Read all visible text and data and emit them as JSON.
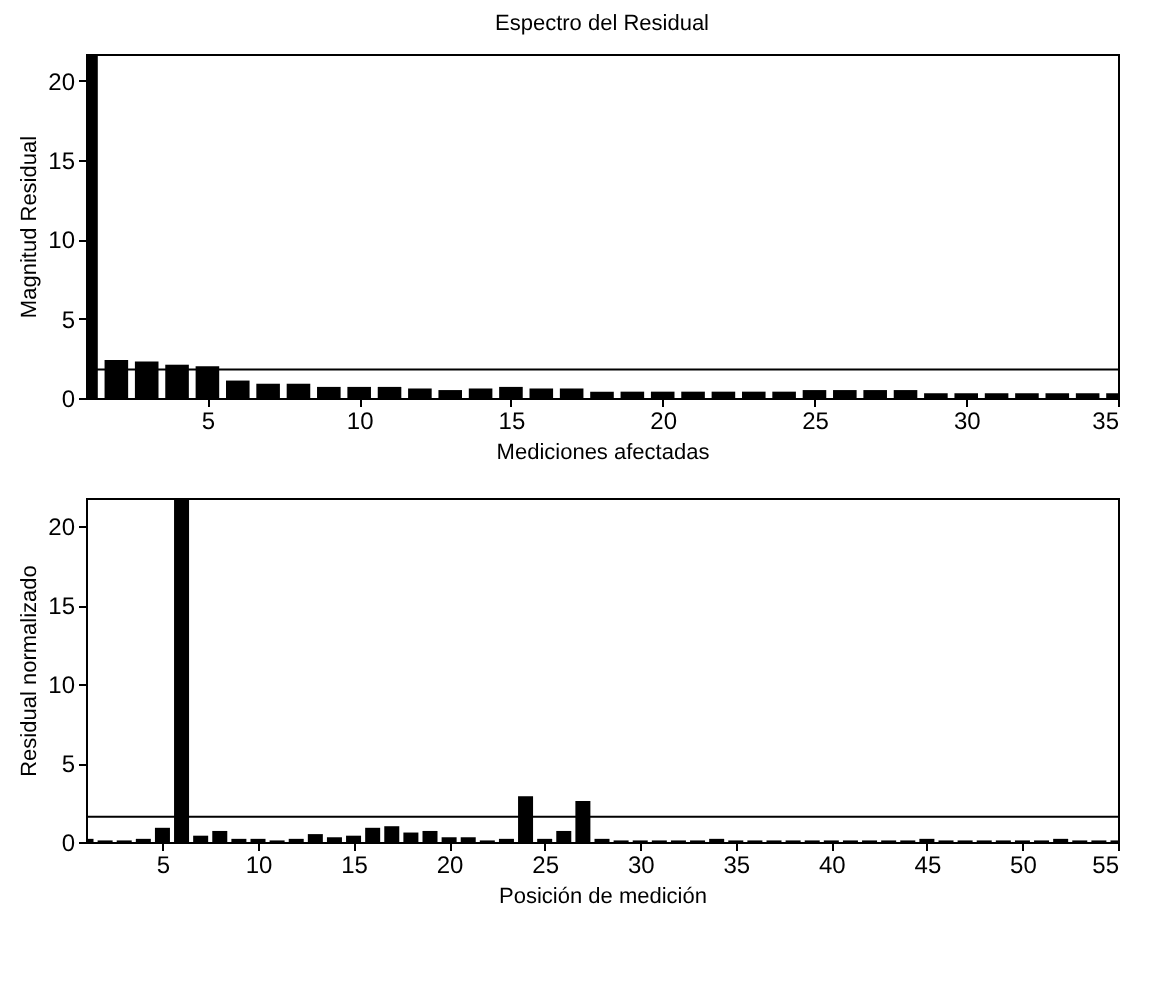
{
  "chart_data": [
    {
      "type": "bar",
      "title": "Espectro del Residual",
      "xlabel": "Mediciones afectadas",
      "ylabel": "Magnitud Residual",
      "color": "#000000",
      "x": [
        1,
        2,
        3,
        4,
        5,
        6,
        7,
        8,
        9,
        10,
        11,
        12,
        13,
        14,
        15,
        16,
        17,
        18,
        19,
        20,
        21,
        22,
        23,
        24,
        25,
        26,
        27,
        28,
        29,
        30,
        31,
        32,
        33,
        34,
        35
      ],
      "values": [
        21.7,
        2.4,
        2.3,
        2.1,
        2.0,
        1.1,
        0.9,
        0.9,
        0.7,
        0.7,
        0.7,
        0.6,
        0.5,
        0.6,
        0.7,
        0.6,
        0.6,
        0.4,
        0.4,
        0.4,
        0.4,
        0.4,
        0.4,
        0.4,
        0.5,
        0.5,
        0.5,
        0.5,
        0.3,
        0.3,
        0.3,
        0.3,
        0.3,
        0.3,
        0.3
      ],
      "xlim": [
        1,
        35
      ],
      "ylim": [
        0,
        21.7
      ],
      "xticks": [
        5,
        10,
        15,
        20,
        25,
        30,
        35
      ],
      "yticks": [
        0,
        5,
        10,
        15,
        20
      ],
      "grid": false,
      "ref_lines": [
        {
          "axis": "y",
          "value": 1.8
        }
      ]
    },
    {
      "type": "bar",
      "xlabel": "Posición de medición",
      "ylabel": "Residual normalizado",
      "color": "#000000",
      "x": [
        1,
        2,
        3,
        4,
        5,
        6,
        7,
        8,
        9,
        10,
        11,
        12,
        13,
        14,
        15,
        16,
        17,
        18,
        19,
        20,
        21,
        22,
        23,
        24,
        25,
        26,
        27,
        28,
        29,
        30,
        31,
        32,
        33,
        34,
        35,
        36,
        37,
        38,
        39,
        40,
        41,
        42,
        43,
        44,
        45,
        46,
        47,
        48,
        49,
        50,
        51,
        52,
        53,
        54,
        55
      ],
      "values": [
        0.2,
        0.1,
        0.1,
        0.2,
        0.9,
        21.8,
        0.4,
        0.7,
        0.2,
        0.2,
        0.1,
        0.2,
        0.5,
        0.3,
        0.4,
        0.9,
        1.0,
        0.6,
        0.7,
        0.3,
        0.3,
        0.1,
        0.2,
        2.9,
        0.2,
        0.7,
        2.6,
        0.2,
        0.1,
        0.1,
        0.1,
        0.1,
        0.1,
        0.2,
        0.1,
        0.1,
        0.1,
        0.1,
        0.1,
        0.1,
        0.1,
        0.1,
        0.1,
        0.1,
        0.2,
        0.1,
        0.1,
        0.1,
        0.1,
        0.1,
        0.1,
        0.2,
        0.1,
        0.1,
        0.1
      ],
      "xlim": [
        1,
        55
      ],
      "ylim": [
        0,
        21.8
      ],
      "xticks": [
        5,
        10,
        15,
        20,
        25,
        30,
        35,
        40,
        45,
        50,
        55
      ],
      "yticks": [
        0,
        5,
        10,
        15,
        20
      ],
      "grid": false,
      "ref_lines": [
        {
          "axis": "y",
          "value": 1.6
        }
      ]
    }
  ]
}
